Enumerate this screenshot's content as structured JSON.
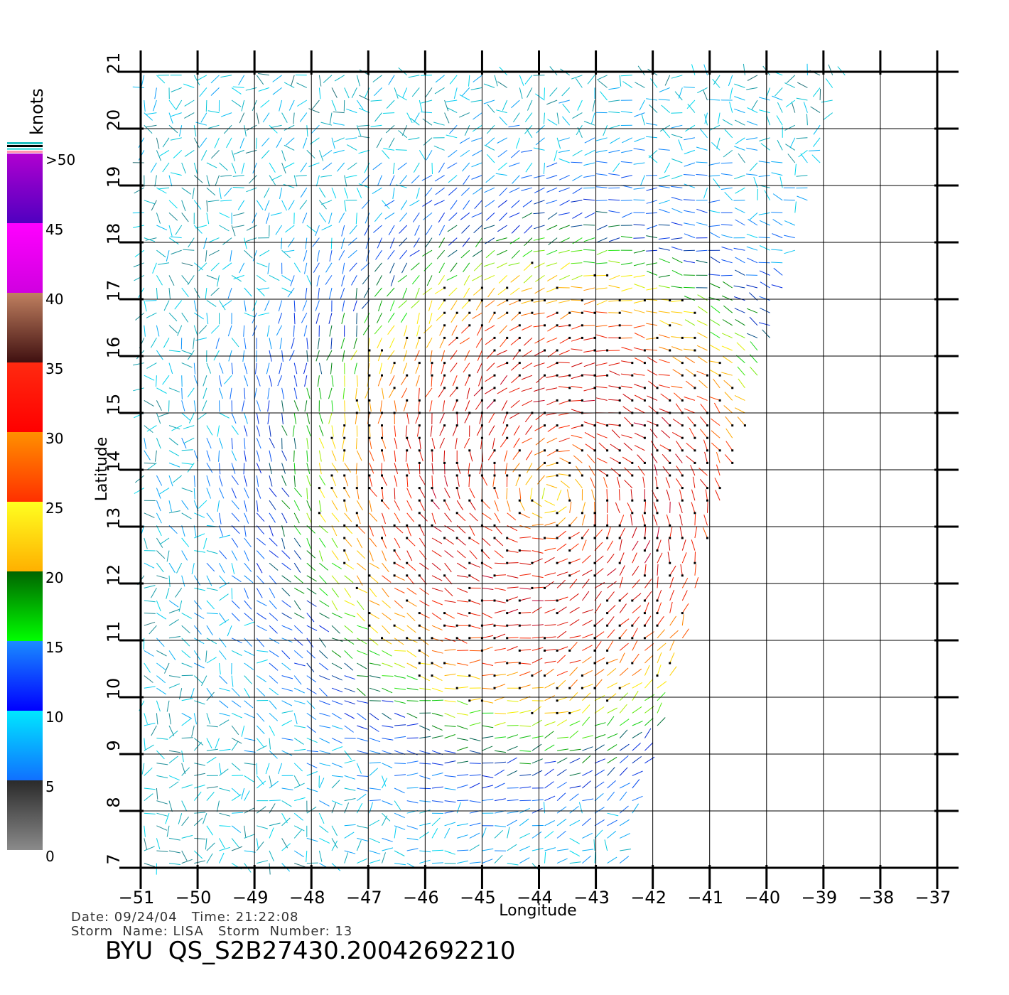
{
  "chart_data": {
    "type": "wind-vector-map",
    "xlabel": "Longitude",
    "ylabel": "Latitude",
    "xlim": [
      -51,
      -37
    ],
    "ylim": [
      7,
      21
    ],
    "x_ticks": [
      "−51",
      "−50",
      "−49",
      "−48",
      "−47",
      "−46",
      "−45",
      "−44",
      "−43",
      "−42",
      "−41",
      "−40",
      "−39",
      "−38",
      "−37"
    ],
    "y_ticks": [
      "7",
      "8",
      "9",
      "10",
      "11",
      "12",
      "13",
      "14",
      "15",
      "16",
      "17",
      "18",
      "19",
      "20",
      "21"
    ],
    "grid": true,
    "swath_edge_east": [
      [
        -38.6,
        21
      ],
      [
        -40.3,
        15
      ],
      [
        -41.0,
        12.8
      ],
      [
        -41.9,
        9.5
      ],
      [
        -42.6,
        7
      ]
    ],
    "storm_center": {
      "lon": -43.8,
      "lat": 13.6
    },
    "colorbar": {
      "unit": "knots",
      "labels": [
        ">50",
        "45",
        "40",
        "35",
        "30",
        "25",
        "20",
        "15",
        "10",
        "5",
        "0"
      ],
      "bands": [
        {
          "from": 0,
          "to": 5,
          "top": "#2a2a2a",
          "bottom": "#8a8a8a"
        },
        {
          "from": 5,
          "to": 10,
          "top": "#00e8ff",
          "bottom": "#1070ff"
        },
        {
          "from": 10,
          "to": 15,
          "top": "#1a8cff",
          "bottom": "#0000ff"
        },
        {
          "from": 15,
          "to": 20,
          "top": "#006400",
          "bottom": "#00ff00"
        },
        {
          "from": 20,
          "to": 25,
          "top": "#ffff20",
          "bottom": "#ffb000"
        },
        {
          "from": 25,
          "to": 30,
          "top": "#ff9000",
          "bottom": "#ff3000"
        },
        {
          "from": 30,
          "to": 35,
          "top": "#ff2a10",
          "bottom": "#ff0000"
        },
        {
          "from": 35,
          "to": 40,
          "top": "#c08060",
          "bottom": "#401010"
        },
        {
          "from": 40,
          "to": 45,
          "top": "#ff00ff",
          "bottom": "#d000e0"
        },
        {
          "from": 45,
          "to": 50,
          "top": "#b000d0",
          "bottom": "#5000c0"
        }
      ]
    }
  },
  "footer": {
    "line1": "Date: 09/24/04   Time: 21:22:08",
    "line2": "Storm  Name: LISA   Storm  Number: 13",
    "title": "BYU  QS_S2B27430.20042692210"
  }
}
